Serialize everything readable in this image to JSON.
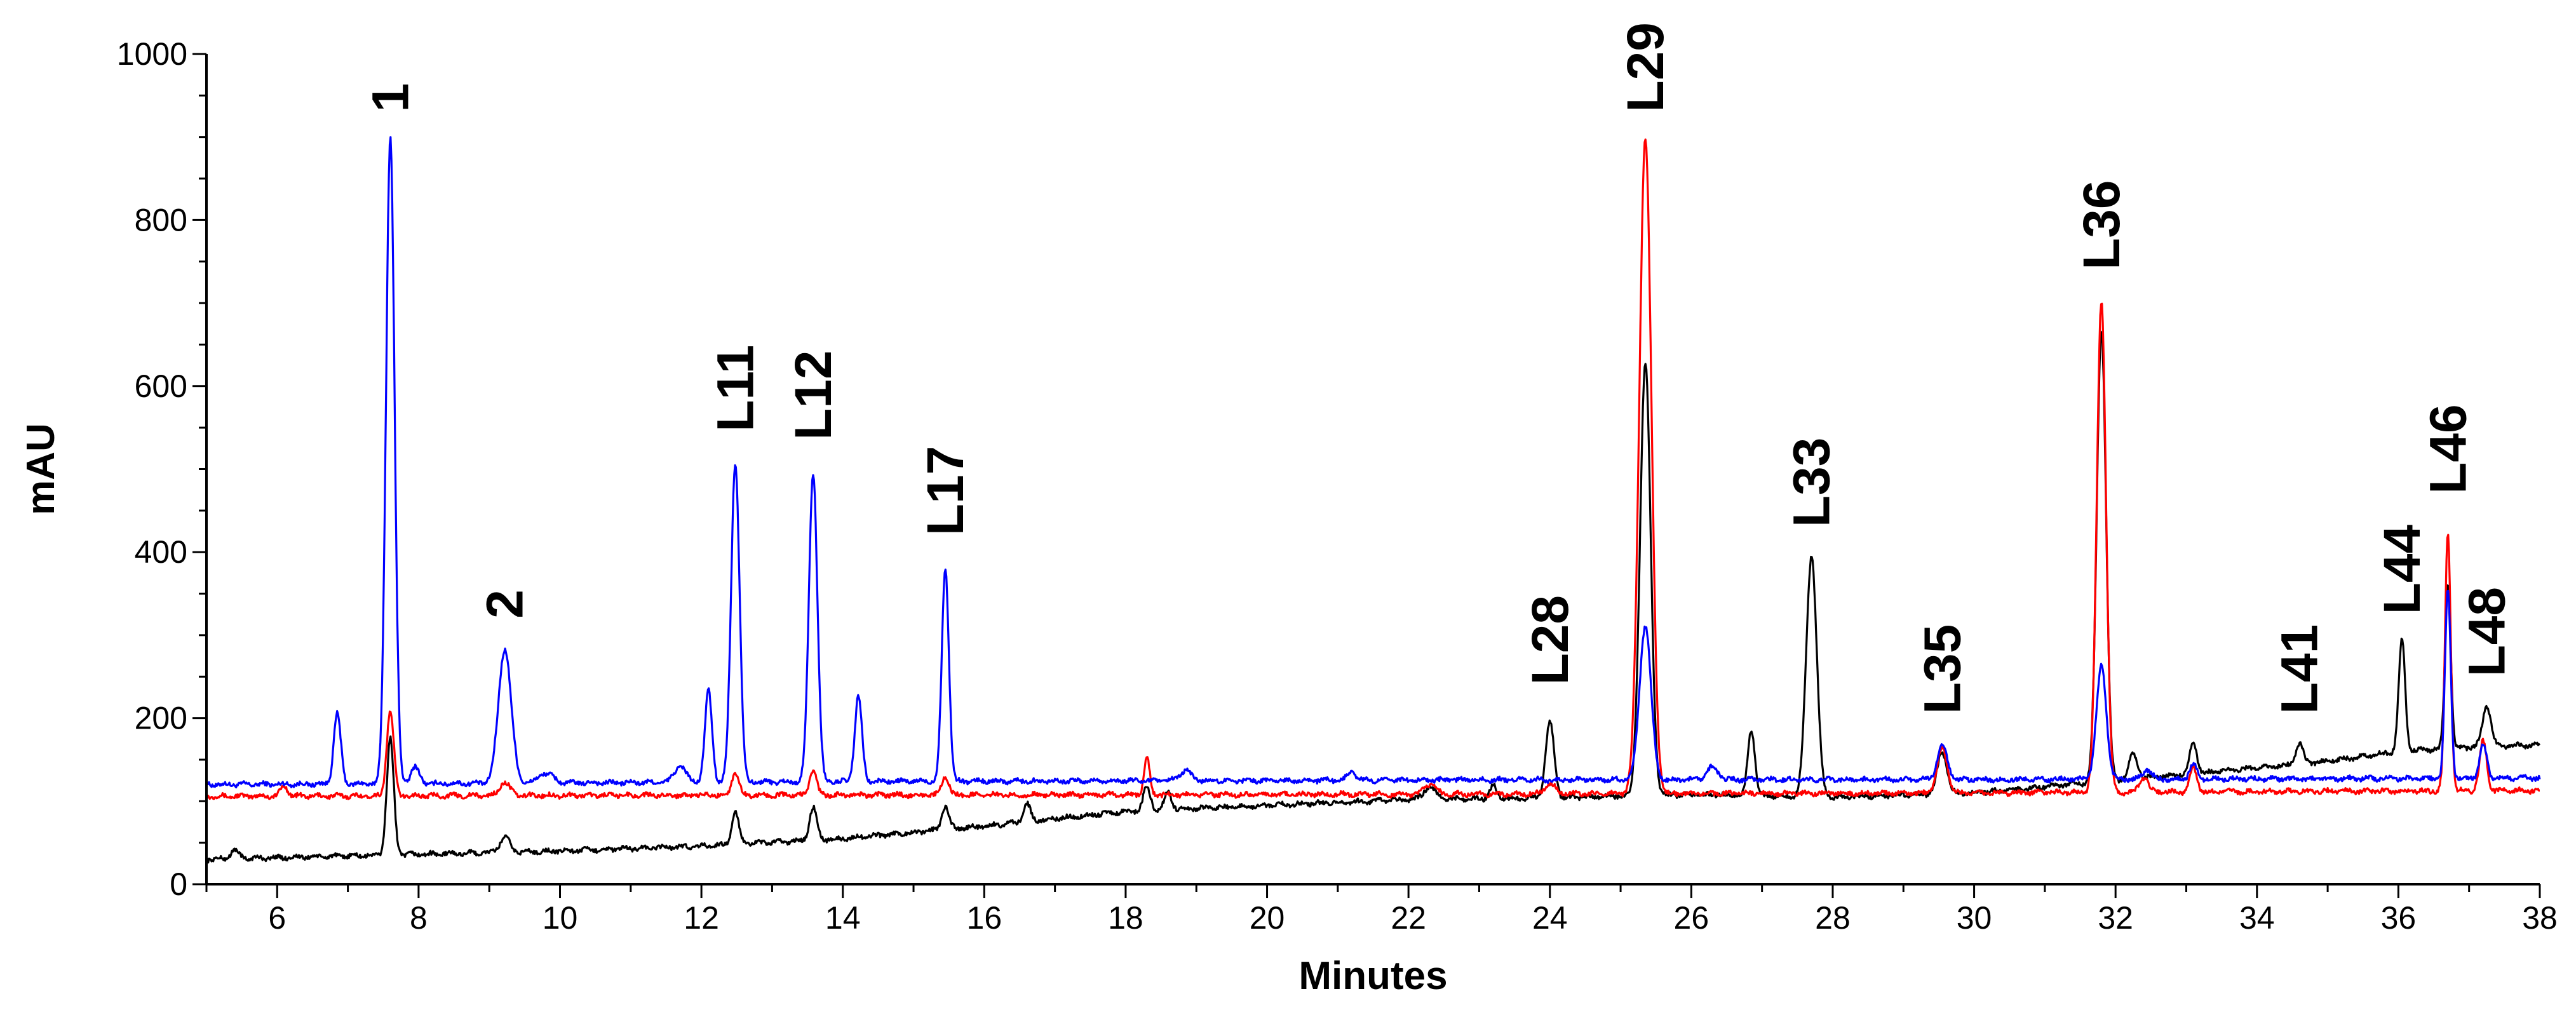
{
  "chart_data": {
    "type": "line",
    "xlabel": "Minutes",
    "ylabel": "mAU",
    "xlim": [
      5,
      38
    ],
    "ylim": [
      0,
      1000
    ],
    "x_ticks": [
      6,
      8,
      10,
      12,
      14,
      16,
      18,
      20,
      22,
      24,
      26,
      28,
      30,
      32,
      34,
      36,
      38
    ],
    "y_ticks": [
      0,
      200,
      400,
      600,
      800,
      1000
    ],
    "grid": false,
    "legend": "none",
    "series": [
      {
        "color": "#0000ff",
        "baseline": [
          [
            5,
            120
          ],
          [
            10,
            122
          ],
          [
            15,
            124
          ],
          [
            20,
            125
          ],
          [
            25,
            126
          ],
          [
            30,
            126
          ],
          [
            35,
            127
          ],
          [
            38,
            128
          ]
        ],
        "peaks": [
          [
            6.85,
            85,
            0.05
          ],
          [
            7.6,
            780,
            0.06
          ],
          [
            7.95,
            20,
            0.06
          ],
          [
            9.22,
            162,
            0.09
          ],
          [
            9.8,
            12,
            0.1
          ],
          [
            11.7,
            20,
            0.08
          ],
          [
            12.1,
            110,
            0.05
          ],
          [
            12.48,
            385,
            0.06
          ],
          [
            13.58,
            372,
            0.06
          ],
          [
            14.22,
            103,
            0.05
          ],
          [
            15.45,
            256,
            0.05
          ],
          [
            18.85,
            12,
            0.08
          ],
          [
            21.2,
            10,
            0.06
          ],
          [
            25.35,
            186,
            0.08
          ],
          [
            26.3,
            15,
            0.08
          ],
          [
            29.55,
            40,
            0.07
          ],
          [
            31.8,
            136,
            0.07
          ],
          [
            32.45,
            12,
            0.06
          ],
          [
            33.1,
            18,
            0.05
          ],
          [
            36.7,
            228,
            0.04
          ],
          [
            37.2,
            40,
            0.05
          ]
        ]
      },
      {
        "color": "#ff0000",
        "baseline": [
          [
            5,
            106
          ],
          [
            10,
            107
          ],
          [
            20,
            108
          ],
          [
            25,
            109
          ],
          [
            30,
            110
          ],
          [
            35,
            112
          ],
          [
            38,
            113
          ]
        ],
        "peaks": [
          [
            6.1,
            12,
            0.05
          ],
          [
            7.6,
            102,
            0.05
          ],
          [
            9.22,
            16,
            0.07
          ],
          [
            12.48,
            28,
            0.05
          ],
          [
            13.58,
            30,
            0.05
          ],
          [
            15.45,
            22,
            0.05
          ],
          [
            18.3,
            45,
            0.04
          ],
          [
            22.3,
            12,
            0.08
          ],
          [
            24.0,
            12,
            0.08
          ],
          [
            25.35,
            790,
            0.085
          ],
          [
            29.55,
            54,
            0.07
          ],
          [
            31.8,
            592,
            0.065
          ],
          [
            32.4,
            18,
            0.06
          ],
          [
            33.1,
            30,
            0.05
          ],
          [
            36.7,
            312,
            0.04
          ],
          [
            37.2,
            60,
            0.05
          ]
        ]
      },
      {
        "color": "#000000",
        "baseline": [
          [
            5,
            30
          ],
          [
            8,
            36
          ],
          [
            10,
            40
          ],
          [
            12,
            46
          ],
          [
            14,
            55
          ],
          [
            16,
            70
          ],
          [
            18,
            88
          ],
          [
            20,
            95
          ],
          [
            22,
            102
          ],
          [
            24,
            104
          ],
          [
            26,
            108
          ],
          [
            28,
            105
          ],
          [
            30,
            110
          ],
          [
            32,
            125
          ],
          [
            34,
            140
          ],
          [
            35,
            148
          ],
          [
            36,
            160
          ],
          [
            37,
            165
          ],
          [
            38,
            168
          ]
        ],
        "peaks": [
          [
            5.4,
            10,
            0.06
          ],
          [
            7.6,
            140,
            0.05
          ],
          [
            9.22,
            18,
            0.07
          ],
          [
            12.48,
            38,
            0.05
          ],
          [
            13.58,
            40,
            0.05
          ],
          [
            15.45,
            28,
            0.05
          ],
          [
            16.6,
            22,
            0.05
          ],
          [
            18.3,
            28,
            0.05
          ],
          [
            18.6,
            20,
            0.05
          ],
          [
            22.3,
            15,
            0.08
          ],
          [
            23.2,
            15,
            0.05
          ],
          [
            24.0,
            92,
            0.06
          ],
          [
            25.35,
            520,
            0.075
          ],
          [
            26.85,
            80,
            0.05
          ],
          [
            27.7,
            290,
            0.075
          ],
          [
            29.55,
            50,
            0.07
          ],
          [
            31.8,
            545,
            0.065
          ],
          [
            32.25,
            30,
            0.06
          ],
          [
            33.1,
            38,
            0.05
          ],
          [
            34.6,
            25,
            0.05
          ],
          [
            36.05,
            135,
            0.045
          ],
          [
            36.7,
            200,
            0.04
          ],
          [
            37.25,
            48,
            0.06
          ]
        ]
      }
    ],
    "annotations": [
      {
        "text": "1",
        "x": 7.6,
        "y": 930
      },
      {
        "text": "2",
        "x": 9.22,
        "y": 320
      },
      {
        "text": "L11",
        "x": 12.48,
        "y": 545
      },
      {
        "text": "L12",
        "x": 13.58,
        "y": 535
      },
      {
        "text": "L17",
        "x": 15.45,
        "y": 420
      },
      {
        "text": "L28",
        "x": 24.0,
        "y": 240
      },
      {
        "text": "L29",
        "x": 25.35,
        "y": 930
      },
      {
        "text": "L33",
        "x": 27.7,
        "y": 430
      },
      {
        "text": "L35",
        "x": 29.55,
        "y": 205
      },
      {
        "text": "L36",
        "x": 31.8,
        "y": 740
      },
      {
        "text": "L41",
        "x": 34.6,
        "y": 205
      },
      {
        "text": "L44",
        "x": 36.05,
        "y": 325
      },
      {
        "text": "L46",
        "x": 36.7,
        "y": 470
      },
      {
        "text": "L48",
        "x": 37.25,
        "y": 250
      }
    ]
  }
}
